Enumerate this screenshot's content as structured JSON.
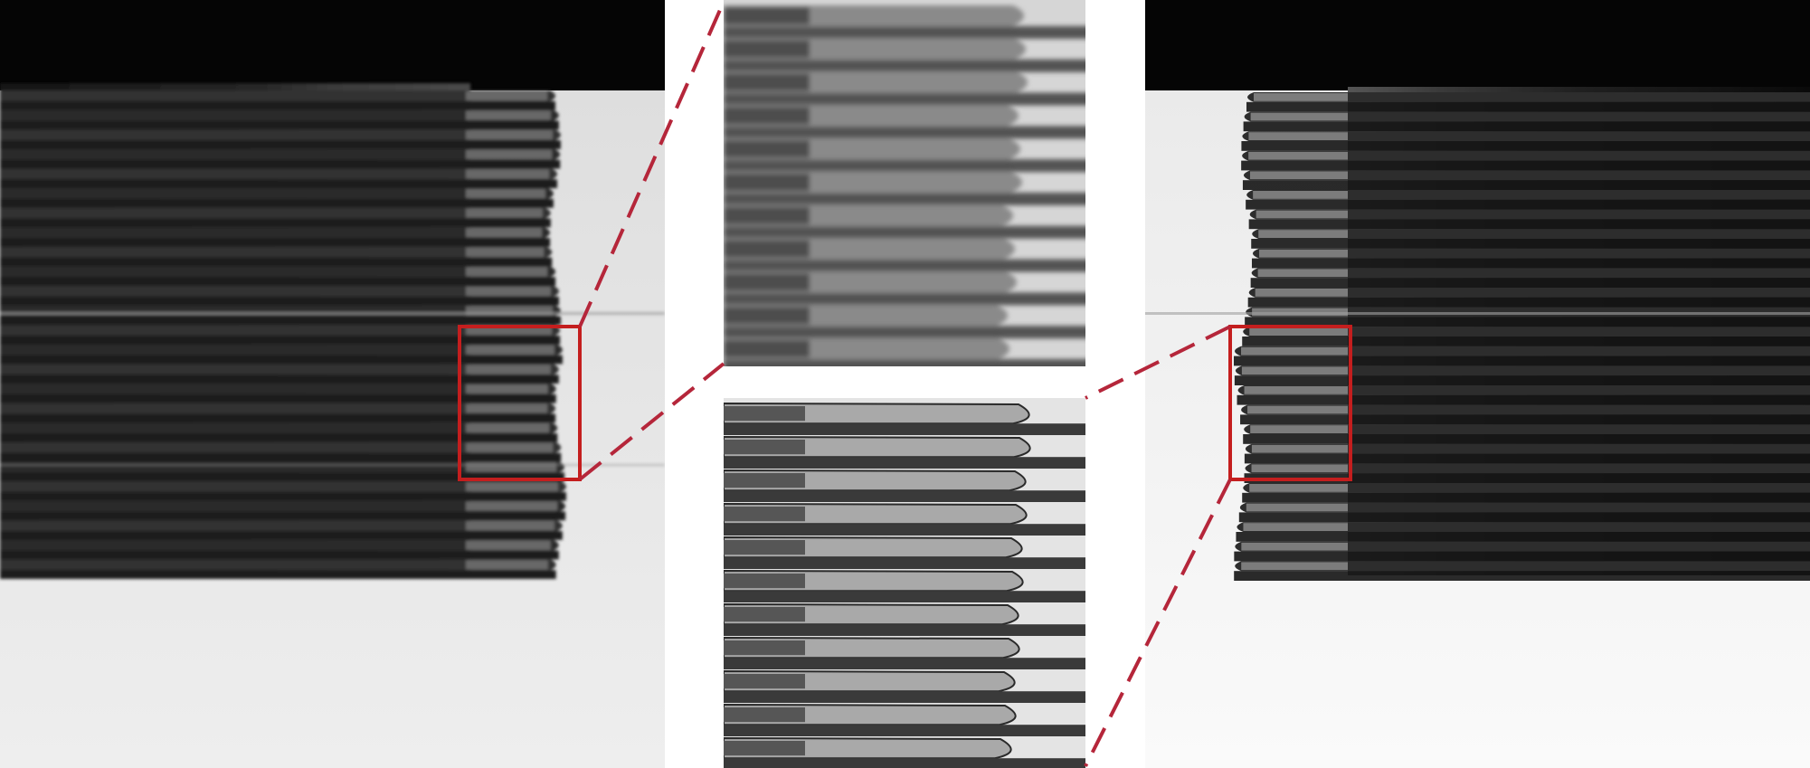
{
  "figure": {
    "description_alt": "",
    "panels": [
      {
        "id": "left",
        "kind": "original-blurred",
        "stripe_count": 25
      },
      {
        "id": "zoom-top",
        "kind": "zoom-blurred",
        "stripe_count": 11
      },
      {
        "id": "zoom-bottom",
        "kind": "zoom-restored",
        "stripe_count": 11
      },
      {
        "id": "right",
        "kind": "restored-mirrored",
        "stripe_count": 25
      }
    ]
  },
  "colors": {
    "accent": "#b5263a",
    "roi_box": "#c41e1e",
    "dark_band": "#050505",
    "background_light": "#e6e6e6",
    "stripe_dark": "#2a2a2a",
    "stripe_mid": "#7a7a7a"
  }
}
